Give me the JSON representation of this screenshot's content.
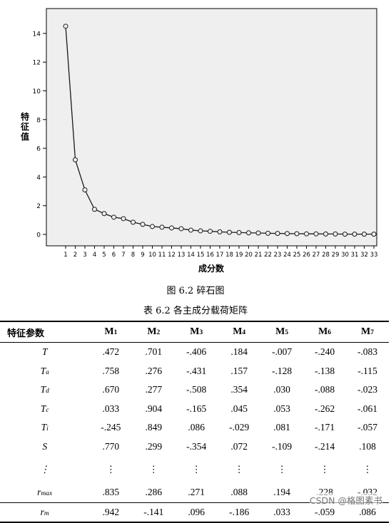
{
  "chart_data": {
    "type": "line",
    "ylabel": "特征值",
    "xlabel": "成分数",
    "ylim": [
      0,
      16
    ],
    "yticks": [
      0,
      2,
      4,
      6,
      8,
      10,
      12,
      14
    ],
    "x": [
      1,
      2,
      3,
      4,
      5,
      6,
      7,
      8,
      9,
      10,
      11,
      12,
      13,
      14,
      15,
      16,
      17,
      18,
      19,
      20,
      21,
      22,
      23,
      24,
      25,
      26,
      27,
      28,
      29,
      30,
      31,
      32,
      33
    ],
    "values": [
      14.5,
      5.2,
      3.1,
      1.75,
      1.45,
      1.2,
      1.1,
      0.85,
      0.7,
      0.55,
      0.5,
      0.45,
      0.4,
      0.3,
      0.25,
      0.22,
      0.18,
      0.15,
      0.13,
      0.11,
      0.1,
      0.08,
      0.07,
      0.06,
      0.05,
      0.04,
      0.04,
      0.03,
      0.03,
      0.02,
      0.02,
      0.02,
      0.02
    ],
    "grid": false,
    "legend": "none",
    "plot_background": "#efefef",
    "line_color": "#1a1a1a"
  },
  "figure_caption": "图 6.2  碎石图",
  "table_caption": "表 6.2 各主成分载荷矩阵",
  "table": {
    "header_first": "特征参数",
    "columns": [
      {
        "base": "M",
        "sub": "1"
      },
      {
        "base": "M",
        "sub": "2"
      },
      {
        "base": "M",
        "sub": "3"
      },
      {
        "base": "M",
        "sub": "4"
      },
      {
        "base": "M",
        "sub": "5"
      },
      {
        "base": "M",
        "sub": "6"
      },
      {
        "base": "M",
        "sub": "7"
      }
    ],
    "rows": [
      {
        "base": "T",
        "sub": "",
        "values": [
          ".472",
          ".701",
          "-.406",
          ".184",
          "-.007",
          "-.240",
          "-.083"
        ]
      },
      {
        "base": "T",
        "sub": "a",
        "values": [
          ".758",
          ".276",
          "-.431",
          ".157",
          "-.128",
          "-.138",
          "-.115"
        ]
      },
      {
        "base": "T",
        "sub": "d",
        "values": [
          ".670",
          ".277",
          "-.508",
          ".354",
          ".030",
          "-.088",
          "-.023"
        ]
      },
      {
        "base": "T",
        "sub": "c",
        "values": [
          ".033",
          ".904",
          "-.165",
          ".045",
          ".053",
          "-.262",
          "-.061"
        ]
      },
      {
        "base": "T",
        "sub": "i",
        "values": [
          "-.245",
          ".849",
          ".086",
          "-.029",
          ".081",
          "-.171",
          "-.057"
        ]
      },
      {
        "base": "S",
        "sub": "",
        "values": [
          ".770",
          ".299",
          "-.354",
          ".072",
          "-.109",
          "-.214",
          ".108"
        ]
      },
      {
        "base": "⋮",
        "sub": "",
        "values": [
          "⋮",
          "⋮",
          "⋮",
          "⋮",
          "⋮",
          "⋮",
          "⋮"
        ]
      },
      {
        "base": "r",
        "sub": "max",
        "values": [
          ".835",
          ".286",
          ".271",
          ".088",
          ".194",
          ".228",
          "-.032"
        ]
      },
      {
        "base": "r",
        "sub": "m",
        "values": [
          ".942",
          "-.141",
          ".096",
          "-.186",
          ".033",
          "-.059",
          ".086"
        ]
      }
    ]
  },
  "watermark": "CSDN @格图素书"
}
